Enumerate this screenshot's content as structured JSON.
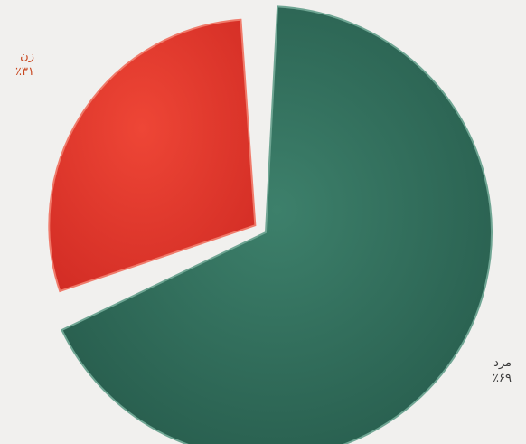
{
  "chart_data": {
    "type": "pie",
    "title": "",
    "slices": [
      {
        "label": "مرد",
        "value": 69,
        "value_label": "٪۶۹",
        "color": "#2f6b58",
        "exploded": false
      },
      {
        "label": "زن",
        "value": 31,
        "value_label": "٪۳۱",
        "color": "#e5372c",
        "exploded": true
      }
    ],
    "legend": "none"
  }
}
